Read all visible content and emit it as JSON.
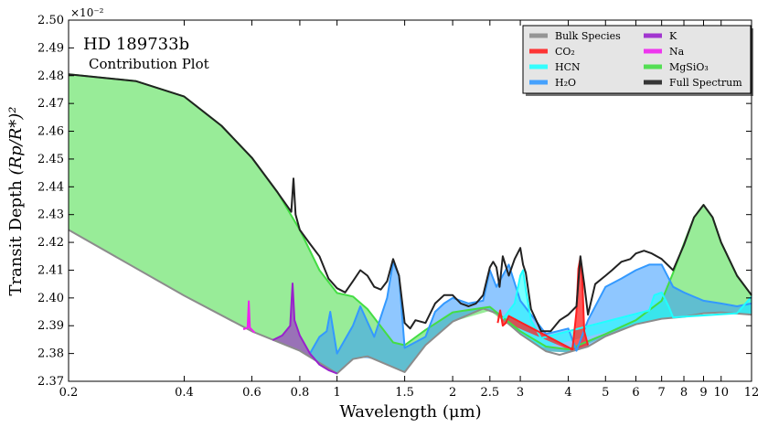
{
  "chart_data": {
    "type": "area",
    "title": "HD 189733b",
    "subtitle": "Contribution Plot",
    "xlabel": "Wavelength (μm)",
    "ylabel_main": "Transit Depth",
    "ylabel_math": "(Rp/R*)²",
    "y_multiplier": "×10⁻²",
    "x_scale": "log",
    "xlim": [
      0.2,
      12
    ],
    "ylim": [
      2.37,
      2.5
    ],
    "x_ticks": [
      0.2,
      0.4,
      0.6,
      0.8,
      1,
      1.5,
      2,
      2.5,
      3,
      4,
      5,
      6,
      7,
      8,
      9,
      10,
      12
    ],
    "x_tick_labels": [
      "0.2",
      "0.4",
      "0.6",
      "0.8",
      "1",
      "1.5",
      "2",
      "2.5",
      "3",
      "4",
      "5",
      "6",
      "7",
      "8",
      "9",
      "10",
      "12"
    ],
    "y_ticks": [
      2.37,
      2.38,
      2.39,
      2.4,
      2.41,
      2.42,
      2.43,
      2.44,
      2.45,
      2.46,
      2.47,
      2.48,
      2.49,
      2.5
    ],
    "y_tick_labels": [
      "2.37",
      "2.38",
      "2.39",
      "2.40",
      "2.41",
      "2.42",
      "2.43",
      "2.44",
      "2.45",
      "2.46",
      "2.47",
      "2.48",
      "2.49",
      "2.50"
    ],
    "legend_position": "top-right",
    "legend": [
      {
        "label": "Bulk Species",
        "color": "#8c8c8c"
      },
      {
        "label": "CO₂",
        "color": "#ff2020"
      },
      {
        "label": "HCN",
        "color": "#20ffff"
      },
      {
        "label": "H₂O",
        "color": "#3399ff"
      },
      {
        "label": "K",
        "color": "#9922cc"
      },
      {
        "label": "Na",
        "color": "#ee22ee"
      },
      {
        "label": "MgSiO₃",
        "color": "#44dd44"
      },
      {
        "label": "Full Spectrum",
        "color": "#222222"
      }
    ],
    "series": [
      {
        "name": "Bulk Species",
        "color": "#8c8c8c",
        "x": [
          0.2,
          0.4,
          0.6,
          0.8,
          1.0,
          1.1,
          1.2,
          1.5,
          1.7,
          2.0,
          2.4,
          2.6,
          3.0,
          3.5,
          3.8,
          4.5,
          5.0,
          6.0,
          7.0,
          8.0,
          9.0,
          10.0,
          12.0
        ],
        "y": [
          2.4245,
          2.4008,
          2.388,
          2.381,
          2.3728,
          2.378,
          2.379,
          2.3733,
          2.383,
          2.3915,
          2.3962,
          2.3945,
          2.387,
          2.3808,
          2.3795,
          2.3825,
          2.3862,
          2.3905,
          2.3925,
          2.3932,
          2.3945,
          2.3948,
          2.394
        ]
      },
      {
        "name": "Na",
        "color": "#ee22ee",
        "x": [
          0.57,
          0.585,
          0.589,
          0.593,
          0.61
        ],
        "y": [
          2.3887,
          2.3893,
          2.3988,
          2.3893,
          2.3875
        ]
      },
      {
        "name": "K",
        "color": "#9922cc",
        "x": [
          0.68,
          0.72,
          0.755,
          0.766,
          0.775,
          0.8,
          0.85,
          0.9,
          0.95,
          1.0
        ],
        "y": [
          2.3848,
          2.3865,
          2.39,
          2.4052,
          2.392,
          2.3865,
          2.38,
          2.376,
          2.374,
          2.3728
        ]
      },
      {
        "name": "H₂O",
        "color": "#3399ff",
        "x": [
          0.85,
          0.9,
          0.94,
          0.96,
          1.0,
          1.1,
          1.15,
          1.25,
          1.35,
          1.4,
          1.45,
          1.5,
          1.7,
          1.8,
          1.9,
          2.0,
          2.2,
          2.4,
          2.5,
          2.6,
          2.8,
          3.0,
          3.5,
          4.0,
          4.2,
          4.5,
          5.0,
          5.5,
          6.0,
          6.5,
          7.0,
          7.5,
          8.0,
          9.0,
          10.0,
          11.0,
          12.0
        ],
        "y": [
          2.38,
          2.386,
          2.388,
          2.395,
          2.38,
          2.39,
          2.397,
          2.386,
          2.4,
          2.413,
          2.408,
          2.382,
          2.386,
          2.395,
          2.398,
          2.4,
          2.398,
          2.399,
          2.41,
          2.404,
          2.412,
          2.399,
          2.387,
          2.389,
          2.381,
          2.392,
          2.404,
          2.407,
          2.41,
          2.412,
          2.412,
          2.404,
          2.402,
          2.399,
          2.398,
          2.397,
          2.398
        ]
      },
      {
        "name": "HCN",
        "color": "#20ffff",
        "x": [
          2.7,
          2.9,
          3.0,
          3.05,
          3.1,
          3.2,
          3.4,
          6.5,
          6.7,
          7.0,
          7.3,
          7.5,
          11.0,
          12.0
        ],
        "y": [
          2.3925,
          2.398,
          2.408,
          2.41,
          2.403,
          2.392,
          2.3855,
          2.3955,
          2.401,
          2.402,
          2.397,
          2.393,
          2.3945,
          2.4005
        ]
      },
      {
        "name": "CO₂",
        "color": "#ff2020",
        "x": [
          2.62,
          2.66,
          2.7,
          2.75,
          2.8,
          4.1,
          4.2,
          4.25,
          4.3,
          4.35,
          4.4,
          4.5
        ],
        "y": [
          2.391,
          2.3955,
          2.39,
          2.391,
          2.3935,
          2.3815,
          2.395,
          2.4105,
          2.4145,
          2.407,
          2.388,
          2.383
        ]
      },
      {
        "name": "MgSiO₃",
        "color": "#44dd44",
        "x": [
          0.2,
          0.3,
          0.4,
          0.5,
          0.6,
          0.7,
          0.8,
          0.9,
          1.0,
          1.1,
          1.2,
          1.4,
          1.5,
          1.7,
          2.0,
          2.5,
          3.0,
          3.5,
          4.0,
          5.0,
          6.0,
          7.0,
          7.5,
          8.0,
          8.5,
          9.0,
          9.5,
          10.0,
          11.0,
          12.0
        ],
        "y": [
          2.4805,
          2.478,
          2.4725,
          2.462,
          2.4505,
          2.438,
          2.4245,
          2.41,
          2.4018,
          2.4005,
          2.396,
          2.384,
          2.383,
          2.3885,
          2.3948,
          2.3968,
          2.388,
          2.3825,
          2.3815,
          2.387,
          2.392,
          2.399,
          2.409,
          2.4195,
          2.429,
          2.4335,
          2.429,
          2.42,
          2.408,
          2.401
        ]
      },
      {
        "name": "Full Spectrum",
        "color": "#222222",
        "x": [
          0.2,
          0.3,
          0.4,
          0.5,
          0.6,
          0.7,
          0.76,
          0.77,
          0.78,
          0.8,
          0.85,
          0.9,
          0.95,
          1.0,
          1.05,
          1.1,
          1.15,
          1.2,
          1.25,
          1.3,
          1.35,
          1.4,
          1.45,
          1.5,
          1.55,
          1.6,
          1.7,
          1.8,
          1.9,
          2.0,
          2.1,
          2.2,
          2.3,
          2.4,
          2.5,
          2.55,
          2.6,
          2.65,
          2.7,
          2.8,
          2.9,
          3.0,
          3.05,
          3.1,
          3.2,
          3.4,
          3.6,
          3.8,
          4.0,
          4.2,
          4.3,
          4.4,
          4.5,
          4.7,
          5.0,
          5.2,
          5.5,
          5.8,
          6.0,
          6.3,
          6.6,
          7.0,
          7.5,
          8.0,
          8.5,
          9.0,
          9.5,
          10.0,
          11.0,
          12.0
        ],
        "y": [
          2.4805,
          2.478,
          2.4725,
          2.462,
          2.4505,
          2.438,
          2.431,
          2.443,
          2.43,
          2.4245,
          2.4195,
          2.415,
          2.407,
          2.4035,
          2.402,
          2.406,
          2.41,
          2.408,
          2.404,
          2.403,
          2.406,
          2.414,
          2.408,
          2.391,
          2.389,
          2.392,
          2.391,
          2.398,
          2.401,
          2.401,
          2.398,
          2.397,
          2.398,
          2.401,
          2.411,
          2.413,
          2.411,
          2.404,
          2.415,
          2.408,
          2.414,
          2.418,
          2.412,
          2.409,
          2.396,
          2.388,
          2.388,
          2.392,
          2.394,
          2.397,
          2.415,
          2.405,
          2.394,
          2.405,
          2.408,
          2.41,
          2.413,
          2.414,
          2.416,
          2.417,
          2.416,
          2.414,
          2.41,
          2.419,
          2.429,
          2.4335,
          2.429,
          2.42,
          2.408,
          2.401
        ]
      }
    ]
  }
}
